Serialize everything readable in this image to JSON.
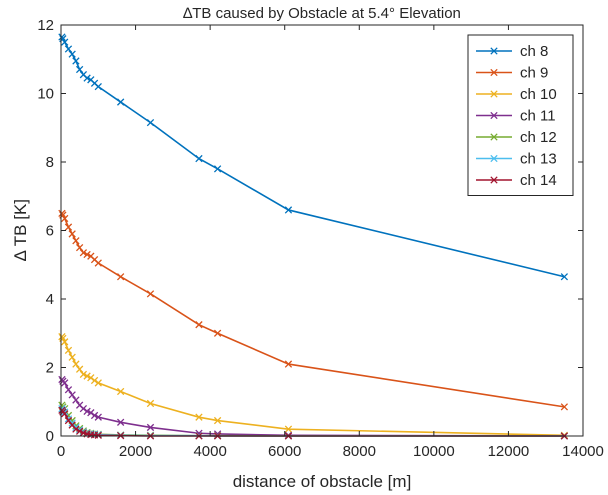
{
  "chart_data": {
    "type": "line",
    "title": "∆TB caused by Obstacle at 5.4° Elevation",
    "xlabel": "distance of obstacle [m]",
    "ylabel": "∆ TB [K]",
    "xlim": [
      0,
      14000
    ],
    "ylim": [
      0,
      12
    ],
    "xticks": [
      0,
      2000,
      4000,
      6000,
      8000,
      10000,
      12000,
      14000
    ],
    "yticks": [
      0,
      2,
      4,
      6,
      8,
      10,
      12
    ],
    "grid": false,
    "legend_position": "top-right",
    "marker": "x",
    "x": [
      25,
      50,
      100,
      200,
      300,
      400,
      500,
      600,
      700,
      800,
      900,
      1000,
      1600,
      2400,
      3700,
      4200,
      6100,
      13500
    ],
    "series": [
      {
        "name": "ch 8",
        "color": "#0072BD",
        "values": [
          11.65,
          11.6,
          11.5,
          11.3,
          11.15,
          10.95,
          10.7,
          10.55,
          10.45,
          10.4,
          10.3,
          10.2,
          9.75,
          9.15,
          8.1,
          7.8,
          6.6,
          4.65
        ]
      },
      {
        "name": "ch 9",
        "color": "#D95319",
        "values": [
          6.5,
          6.45,
          6.35,
          6.1,
          5.9,
          5.7,
          5.5,
          5.35,
          5.3,
          5.25,
          5.15,
          5.05,
          4.65,
          4.15,
          3.25,
          3.0,
          2.1,
          0.85
        ]
      },
      {
        "name": "ch 10",
        "color": "#EDB120",
        "values": [
          2.9,
          2.85,
          2.75,
          2.5,
          2.3,
          2.1,
          1.95,
          1.8,
          1.75,
          1.7,
          1.62,
          1.55,
          1.3,
          0.95,
          0.55,
          0.45,
          0.2,
          0.02
        ]
      },
      {
        "name": "ch 11",
        "color": "#7E2F8E",
        "values": [
          1.65,
          1.6,
          1.55,
          1.35,
          1.2,
          1.05,
          0.9,
          0.8,
          0.72,
          0.68,
          0.6,
          0.55,
          0.4,
          0.25,
          0.08,
          0.06,
          0.02,
          0.0
        ]
      },
      {
        "name": "ch 12",
        "color": "#77AC30",
        "values": [
          0.9,
          0.85,
          0.8,
          0.6,
          0.45,
          0.3,
          0.22,
          0.15,
          0.1,
          0.08,
          0.06,
          0.05,
          0.03,
          0.02,
          0.01,
          0.01,
          0.0,
          0.0
        ]
      },
      {
        "name": "ch 13",
        "color": "#4DBEEE",
        "values": [
          0.8,
          0.75,
          0.7,
          0.5,
          0.38,
          0.25,
          0.18,
          0.12,
          0.08,
          0.06,
          0.05,
          0.04,
          0.02,
          0.01,
          0.01,
          0.0,
          0.0,
          0.0
        ]
      },
      {
        "name": "ch 14",
        "color": "#A2142F",
        "values": [
          0.75,
          0.7,
          0.65,
          0.45,
          0.32,
          0.2,
          0.14,
          0.09,
          0.06,
          0.04,
          0.03,
          0.02,
          0.01,
          0.0,
          0.0,
          0.0,
          0.0,
          0.0
        ]
      }
    ]
  }
}
